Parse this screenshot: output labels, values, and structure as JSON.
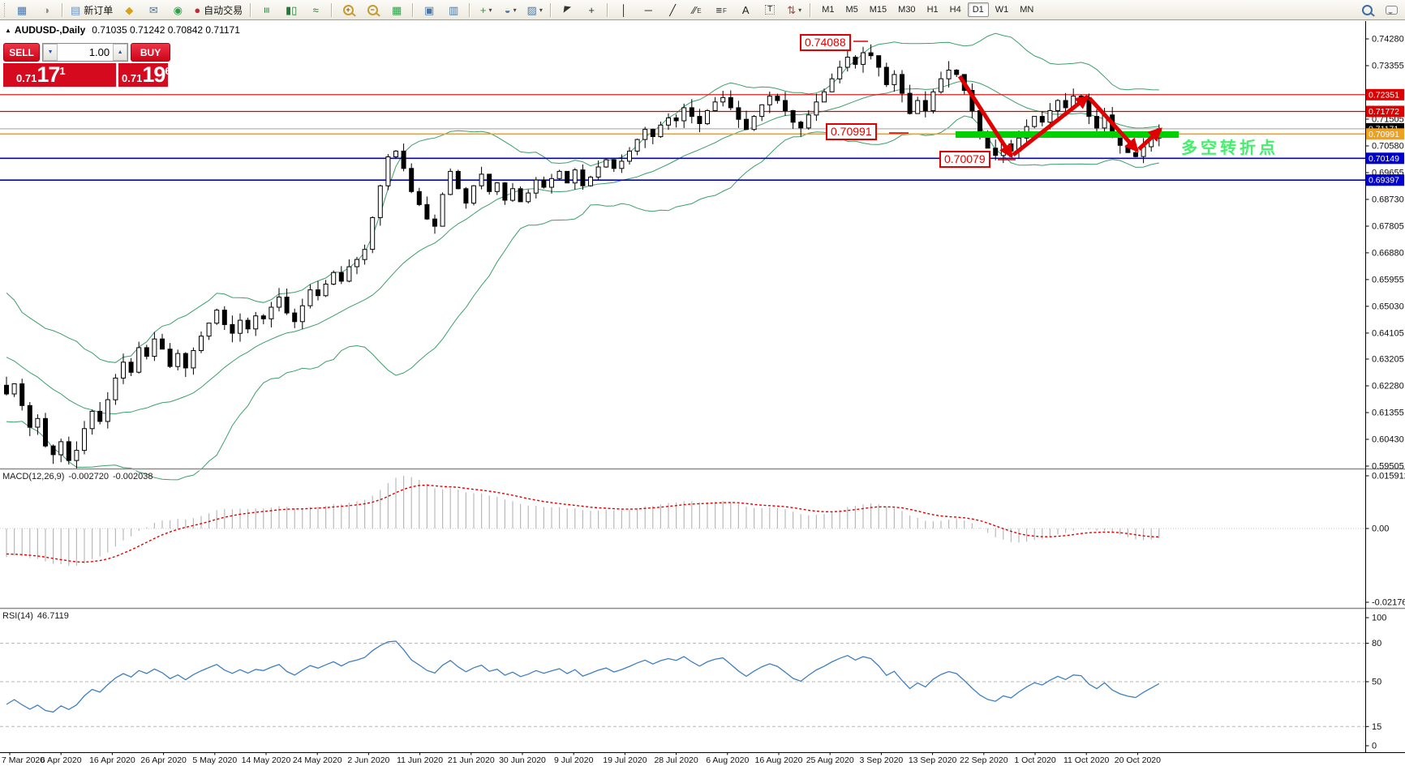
{
  "toolbar": {
    "items": [
      {
        "type": "grip"
      },
      {
        "name": "new-chart-button",
        "glyph": "▦",
        "color": "#4a76a8"
      },
      {
        "name": "profiles-button",
        "glyph": "◑",
        "color": "#8a8a8a"
      },
      {
        "type": "sep"
      },
      {
        "name": "new-order-button",
        "glyph": "▤",
        "color": "#6a92c0",
        "label": "新订单"
      },
      {
        "name": "metaeditor-button",
        "glyph": "◆",
        "color": "#d8a11c"
      },
      {
        "name": "community-button",
        "glyph": "✉",
        "color": "#4a76a8"
      },
      {
        "name": "signals-button",
        "glyph": "◉",
        "color": "#2f9e49"
      },
      {
        "name": "auto-trading-button",
        "glyph": "●",
        "color": "#cf2230",
        "label": "自动交易"
      },
      {
        "type": "sep"
      },
      {
        "name": "bar-chart-button",
        "glyph": "≡",
        "color": "#1f7a33",
        "rot": true
      },
      {
        "name": "candlestick-chart-button",
        "glyph": "▮▯",
        "color": "#1f7a33"
      },
      {
        "name": "line-chart-button",
        "glyph": "≈",
        "color": "#1f7a33"
      },
      {
        "type": "sep"
      },
      {
        "name": "zoom-in-button",
        "shape": "mag",
        "mod": "+"
      },
      {
        "name": "zoom-out-button",
        "shape": "mag",
        "mod": "−"
      },
      {
        "name": "tile-windows-button",
        "glyph": "▦",
        "color": "#2f9e49"
      },
      {
        "type": "sep"
      },
      {
        "name": "auto-arrange-button",
        "glyph": "▣",
        "color": "#4a76a8"
      },
      {
        "name": "chart-shift-button",
        "glyph": "▥",
        "color": "#4a76a8"
      },
      {
        "type": "sep"
      },
      {
        "name": "indicators-button",
        "glyph": "+",
        "color": "#1f9e3d",
        "dd": true
      },
      {
        "name": "periods-button",
        "glyph": "◒",
        "color": "#4a76a8",
        "dd": true
      },
      {
        "name": "templates-button",
        "glyph": "▨",
        "color": "#4a76a8",
        "dd": true
      },
      {
        "type": "sep"
      },
      {
        "name": "cursor-button",
        "glyph": "◤",
        "color": "#333",
        "cursor": true
      },
      {
        "name": "crosshair-button",
        "glyph": "+",
        "color": "#333"
      },
      {
        "type": "sep"
      },
      {
        "name": "vertical-line-button",
        "glyph": "│",
        "color": "#222"
      },
      {
        "name": "horizontal-line-button",
        "glyph": "─",
        "color": "#222"
      },
      {
        "name": "trendline-button",
        "glyph": "╱",
        "color": "#222"
      },
      {
        "name": "equidistant-channel-button",
        "glyph": "∕∕",
        "color": "#222",
        "sub": "E"
      },
      {
        "name": "fibonacci-button",
        "glyph": "≡",
        "color": "#222",
        "sub": "F"
      },
      {
        "name": "text-button",
        "glyph": "A",
        "color": "#222"
      },
      {
        "name": "text-label-button",
        "glyph": "T",
        "color": "#222",
        "dotted": true
      },
      {
        "name": "arrows-button",
        "glyph": "⇅",
        "color": "#b04040",
        "dd": true
      },
      {
        "type": "sep"
      }
    ],
    "timeframes": {
      "options": [
        "M1",
        "M5",
        "M15",
        "M30",
        "H1",
        "H4",
        "D1",
        "W1",
        "MN"
      ],
      "selected": "D1"
    },
    "right_icons": [
      {
        "name": "search-button",
        "shape": "mag-blue"
      },
      {
        "name": "chat-button",
        "shape": "bubble"
      }
    ]
  },
  "chart": {
    "collapse_arrow": "▲",
    "symbol_period": "AUDUSD-,Daily",
    "ohlc_text": "0.71035 0.71242 0.70842 0.71171",
    "trade_panel": {
      "sell_label": "SELL",
      "buy_label": "BUY",
      "volume": "1.00",
      "sell_price_prefix": "0.71",
      "sell_price_big": "17",
      "sell_price_sup": "1",
      "buy_price_prefix": "0.71",
      "buy_price_big": "19",
      "buy_price_sup": "6",
      "spin_down": "▼",
      "spin_up": "▲"
    },
    "hlines": [
      {
        "price": 0.72351,
        "color": "#dd0000",
        "width": 1.2
      },
      {
        "price": 0.71772,
        "color": "#dd0000",
        "width": 1.2
      },
      {
        "price": 0.71171,
        "color": "#b4b4b4",
        "width": 1.2
      },
      {
        "price": 0.70991,
        "color": "#efa11d",
        "width": 1.6
      },
      {
        "price": 0.70149,
        "color": "#0000cc",
        "width": 1.6
      },
      {
        "price": 0.69397,
        "color": "#0000cc",
        "width": 1.6
      }
    ],
    "price_axis": {
      "ticks": [
        "0.74280",
        "0.73355",
        "0.71505",
        "0.70580",
        "0.69655",
        "0.68730",
        "0.67805",
        "0.66880",
        "0.65955",
        "0.65030",
        "0.64105",
        "0.63205",
        "0.62280",
        "0.61355",
        "0.60430",
        "0.59505"
      ],
      "badges": [
        {
          "value": "0.72351",
          "color": "#dd0000"
        },
        {
          "value": "0.71772",
          "color": "#dd0000"
        },
        {
          "value": "0.71171",
          "color": "#000000"
        },
        {
          "value": "0.70991",
          "color": "#efa11d"
        },
        {
          "value": "0.70149",
          "color": "#0000cc"
        },
        {
          "value": "0.69397",
          "color": "#0000cc"
        }
      ]
    },
    "annotations": {
      "peak_label": "0.74088",
      "support_label": "0.70991",
      "trough_label": "0.70079",
      "note_text": "多空转折点",
      "note_color": "#43ef6b",
      "arrow_color": "#e00000",
      "band_color": "#00cf00"
    }
  },
  "chart_data": {
    "type": "candlestick",
    "symbol": "AUDUSD",
    "timeframe": "Daily",
    "open": "0.71035",
    "high": "0.71242",
    "low": "0.70842",
    "close": "0.71171",
    "closes": [
      0.62,
      0.6235,
      0.616,
      0.6085,
      0.6115,
      0.602,
      0.599,
      0.6035,
      0.597,
      0.6005,
      0.608,
      0.614,
      0.6105,
      0.618,
      0.6255,
      0.631,
      0.6275,
      0.636,
      0.633,
      0.639,
      0.6355,
      0.6295,
      0.634,
      0.629,
      0.635,
      0.64,
      0.6445,
      0.649,
      0.644,
      0.641,
      0.6455,
      0.6425,
      0.647,
      0.646,
      0.65,
      0.6535,
      0.648,
      0.645,
      0.6505,
      0.656,
      0.654,
      0.658,
      0.662,
      0.659,
      0.664,
      0.6665,
      0.67,
      0.681,
      0.692,
      0.702,
      0.704,
      0.698,
      0.69,
      0.6855,
      0.6805,
      0.678,
      0.689,
      0.697,
      0.691,
      0.686,
      0.692,
      0.696,
      0.69,
      0.693,
      0.687,
      0.691,
      0.6865,
      0.6895,
      0.694,
      0.6915,
      0.6945,
      0.697,
      0.693,
      0.6975,
      0.692,
      0.695,
      0.6985,
      0.701,
      0.698,
      0.7005,
      0.704,
      0.708,
      0.7115,
      0.709,
      0.713,
      0.7155,
      0.7145,
      0.719,
      0.716,
      0.7135,
      0.718,
      0.721,
      0.7225,
      0.719,
      0.715,
      0.7115,
      0.716,
      0.72,
      0.723,
      0.7215,
      0.718,
      0.714,
      0.712,
      0.7165,
      0.721,
      0.7245,
      0.729,
      0.733,
      0.7365,
      0.734,
      0.738,
      0.737,
      0.733,
      0.727,
      0.7305,
      0.724,
      0.717,
      0.7215,
      0.718,
      0.7245,
      0.729,
      0.732,
      0.7305,
      0.725,
      0.718,
      0.7105,
      0.705,
      0.7025,
      0.7065,
      0.704,
      0.7085,
      0.7125,
      0.716,
      0.714,
      0.718,
      0.7215,
      0.719,
      0.723,
      0.7225,
      0.716,
      0.712,
      0.7165,
      0.71,
      0.706,
      0.7035,
      0.7021,
      0.7055,
      0.7085,
      0.71171
    ],
    "peak": {
      "index": 111,
      "high": 0.74088
    },
    "trough": {
      "index": 127,
      "low": 0.70079
    },
    "bollinger": {
      "period": 20,
      "deviation": 2,
      "color": "#3aa06a"
    },
    "date_labels": [
      "7 Mar 2020",
      "6 Apr 2020",
      "16 Apr 2020",
      "26 Apr 2020",
      "5 May 2020",
      "14 May 2020",
      "24 May 2020",
      "2 Jun 2020",
      "11 Jun 2020",
      "21 Jun 2020",
      "30 Jun 2020",
      "9 Jul 2020",
      "19 Jul 2020",
      "28 Jul 2020",
      "6 Aug 2020",
      "16 Aug 2020",
      "25 Aug 2020",
      "3 Sep 2020",
      "13 Sep 2020",
      "22 Sep 2020",
      "1 Oct 2020",
      "11 Oct 2020",
      "20 Oct 2020"
    ]
  },
  "macd": {
    "label": "MACD(12,26,9)",
    "main_value": "-0.002720",
    "signal_value": "-0.002038",
    "axis_ticks": [
      "0.015912",
      "0.00",
      "-0.021768"
    ],
    "histogram_color": "#b9b9b9",
    "signal_color": "#e00000"
  },
  "rsi": {
    "label": "RSI(14)",
    "value": "46.7119",
    "axis_ticks": [
      "100",
      "80",
      "50",
      "15",
      "0"
    ],
    "levels": [
      80,
      50,
      15
    ],
    "line_color": "#3f7fc1"
  }
}
